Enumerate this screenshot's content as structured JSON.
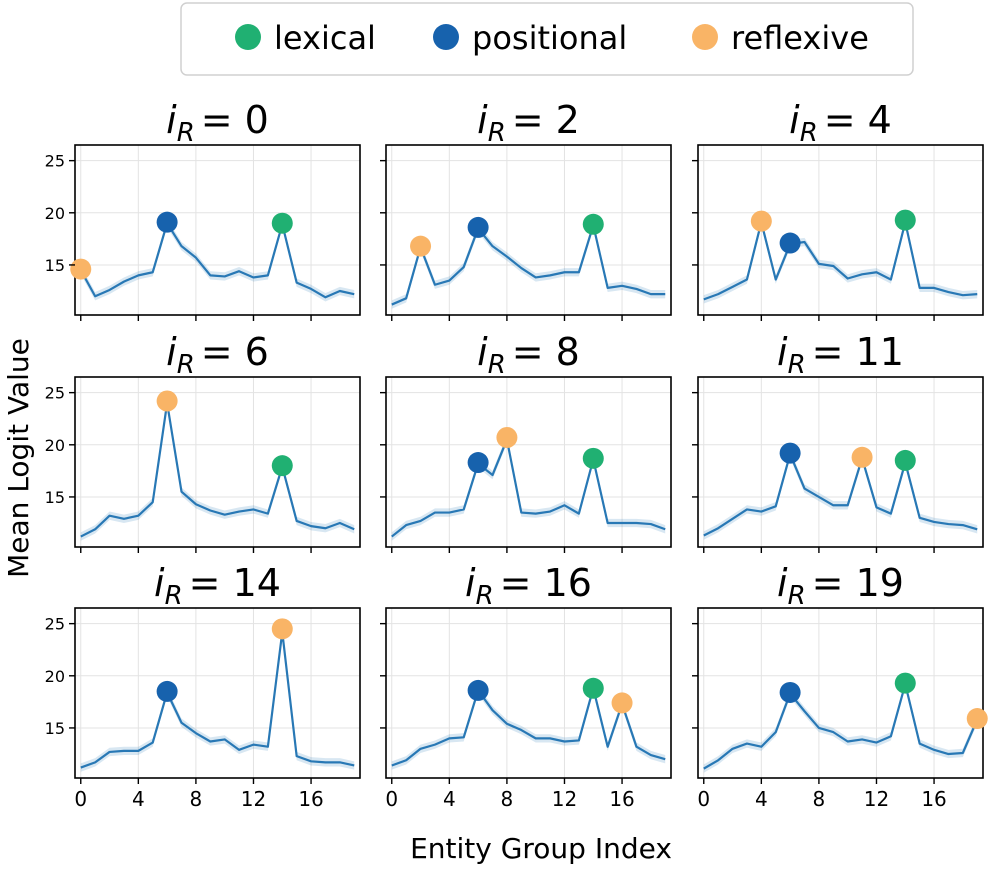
{
  "chart_data": {
    "type": "line",
    "xlabel": "Entity Group Index",
    "ylabel": "Mean Logit Value",
    "xlim": [
      -0.4,
      19.4
    ],
    "ylim": [
      10.2,
      26.5
    ],
    "xticks": [
      0,
      4,
      8,
      12,
      16
    ],
    "yticks": [
      15,
      20,
      25
    ],
    "legend": {
      "placement": "top-center",
      "entries": [
        {
          "label": "lexical",
          "color": "#20b072"
        },
        {
          "label": "positional",
          "color": "#1762ad"
        },
        {
          "label": "reflexive",
          "color": "#f9b466"
        }
      ]
    },
    "colors": {
      "line": "#2878b5",
      "lexical": "#20b072",
      "positional": "#1762ad",
      "reflexive": "#f9b466"
    },
    "panels": [
      {
        "title_var": "i",
        "title_sub": "R",
        "title_value": "= 0",
        "x": [
          0,
          1,
          2,
          3,
          4,
          5,
          6,
          7,
          8,
          9,
          10,
          11,
          12,
          13,
          14,
          15,
          16,
          17,
          18,
          19
        ],
        "y": [
          14.5,
          12.0,
          12.6,
          13.4,
          14.0,
          14.3,
          19.0,
          16.8,
          15.7,
          14.0,
          13.9,
          14.4,
          13.8,
          14.0,
          18.9,
          13.3,
          12.7,
          11.9,
          12.5,
          12.2
        ],
        "markers": [
          {
            "type": "reflexive",
            "x": 0,
            "y": 14.6
          },
          {
            "type": "positional",
            "x": 6,
            "y": 19.1
          },
          {
            "type": "lexical",
            "x": 14,
            "y": 19.0
          }
        ]
      },
      {
        "title_var": "i",
        "title_sub": "R",
        "title_value": "= 2",
        "x": [
          0,
          1,
          2,
          3,
          4,
          5,
          6,
          7,
          8,
          9,
          10,
          11,
          12,
          13,
          14,
          15,
          16,
          17,
          18,
          19
        ],
        "y": [
          11.2,
          11.8,
          16.7,
          13.1,
          13.5,
          14.8,
          18.5,
          16.8,
          15.8,
          14.7,
          13.8,
          14.0,
          14.3,
          14.3,
          18.8,
          12.8,
          13.0,
          12.7,
          12.2,
          12.2
        ],
        "markers": [
          {
            "type": "reflexive",
            "x": 2,
            "y": 16.8
          },
          {
            "type": "positional",
            "x": 6,
            "y": 18.6
          },
          {
            "type": "lexical",
            "x": 14,
            "y": 18.9
          }
        ]
      },
      {
        "title_var": "i",
        "title_sub": "R",
        "title_value": "= 4",
        "x": [
          0,
          1,
          2,
          3,
          4,
          5,
          6,
          7,
          8,
          9,
          10,
          11,
          12,
          13,
          14,
          15,
          16,
          17,
          18,
          19
        ],
        "y": [
          11.7,
          12.2,
          12.9,
          13.6,
          19.1,
          13.6,
          17.0,
          17.2,
          15.1,
          14.9,
          13.7,
          14.1,
          14.3,
          13.6,
          19.1,
          12.8,
          12.8,
          12.4,
          12.1,
          12.2
        ],
        "markers": [
          {
            "type": "reflexive",
            "x": 4,
            "y": 19.2
          },
          {
            "type": "positional",
            "x": 6,
            "y": 17.1
          },
          {
            "type": "lexical",
            "x": 14,
            "y": 19.3
          }
        ]
      },
      {
        "title_var": "i",
        "title_sub": "R",
        "title_value": "= 6",
        "x": [
          0,
          1,
          2,
          3,
          4,
          5,
          6,
          7,
          8,
          9,
          10,
          11,
          12,
          13,
          14,
          15,
          16,
          17,
          18,
          19
        ],
        "y": [
          11.2,
          11.9,
          13.2,
          12.9,
          13.2,
          14.5,
          24.0,
          15.5,
          14.3,
          13.7,
          13.3,
          13.6,
          13.8,
          13.4,
          17.9,
          12.7,
          12.2,
          12.0,
          12.5,
          11.9
        ],
        "markers": [
          {
            "type": "reflexive",
            "x": 6,
            "y": 24.2
          },
          {
            "type": "lexical",
            "x": 14,
            "y": 18.0
          }
        ]
      },
      {
        "title_var": "i",
        "title_sub": "R",
        "title_value": "= 8",
        "x": [
          0,
          1,
          2,
          3,
          4,
          5,
          6,
          7,
          8,
          9,
          10,
          11,
          12,
          13,
          14,
          15,
          16,
          17,
          18,
          19
        ],
        "y": [
          11.2,
          12.3,
          12.7,
          13.5,
          13.5,
          13.8,
          18.2,
          17.1,
          20.5,
          13.5,
          13.4,
          13.6,
          14.2,
          13.4,
          18.6,
          12.5,
          12.5,
          12.5,
          12.4,
          11.9
        ],
        "markers": [
          {
            "type": "positional",
            "x": 6,
            "y": 18.3
          },
          {
            "type": "reflexive",
            "x": 8,
            "y": 20.7
          },
          {
            "type": "lexical",
            "x": 14,
            "y": 18.7
          }
        ]
      },
      {
        "title_var": "i",
        "title_sub": "R",
        "title_value": "= 11",
        "x": [
          0,
          1,
          2,
          3,
          4,
          5,
          6,
          7,
          8,
          9,
          10,
          11,
          12,
          13,
          14,
          15,
          16,
          17,
          18,
          19
        ],
        "y": [
          11.3,
          12.0,
          12.9,
          13.8,
          13.6,
          14.1,
          19.1,
          15.8,
          15.0,
          14.2,
          14.2,
          18.7,
          14.0,
          13.4,
          18.3,
          13.0,
          12.6,
          12.4,
          12.3,
          11.9
        ],
        "markers": [
          {
            "type": "positional",
            "x": 6,
            "y": 19.2
          },
          {
            "type": "reflexive",
            "x": 11,
            "y": 18.8
          },
          {
            "type": "lexical",
            "x": 14,
            "y": 18.5
          }
        ]
      },
      {
        "title_var": "i",
        "title_sub": "R",
        "title_value": "= 14",
        "x": [
          0,
          1,
          2,
          3,
          4,
          5,
          6,
          7,
          8,
          9,
          10,
          11,
          12,
          13,
          14,
          15,
          16,
          17,
          18,
          19
        ],
        "y": [
          11.2,
          11.7,
          12.7,
          12.8,
          12.8,
          13.6,
          18.4,
          15.5,
          14.5,
          13.7,
          13.9,
          12.9,
          13.4,
          13.2,
          24.2,
          12.3,
          11.8,
          11.7,
          11.7,
          11.4
        ],
        "markers": [
          {
            "type": "positional",
            "x": 6,
            "y": 18.5
          },
          {
            "type": "reflexive",
            "x": 14,
            "y": 24.5
          }
        ]
      },
      {
        "title_var": "i",
        "title_sub": "R",
        "title_value": "= 16",
        "x": [
          0,
          1,
          2,
          3,
          4,
          5,
          6,
          7,
          8,
          9,
          10,
          11,
          12,
          13,
          14,
          15,
          16,
          17,
          18,
          19
        ],
        "y": [
          11.4,
          11.9,
          13.0,
          13.4,
          14.0,
          14.1,
          18.6,
          16.7,
          15.4,
          14.8,
          14.0,
          14.0,
          13.7,
          13.8,
          18.8,
          13.2,
          17.3,
          13.2,
          12.4,
          12.0
        ],
        "markers": [
          {
            "type": "positional",
            "x": 6,
            "y": 18.6
          },
          {
            "type": "lexical",
            "x": 14,
            "y": 18.8
          },
          {
            "type": "reflexive",
            "x": 16,
            "y": 17.4
          }
        ]
      },
      {
        "title_var": "i",
        "title_sub": "R",
        "title_value": "= 19",
        "x": [
          0,
          1,
          2,
          3,
          4,
          5,
          6,
          7,
          8,
          9,
          10,
          11,
          12,
          13,
          14,
          15,
          16,
          17,
          18,
          19
        ],
        "y": [
          11.1,
          11.9,
          13.0,
          13.5,
          13.2,
          14.6,
          18.3,
          16.6,
          15.0,
          14.6,
          13.7,
          13.9,
          13.6,
          14.2,
          19.2,
          13.5,
          12.9,
          12.5,
          12.6,
          15.8
        ],
        "markers": [
          {
            "type": "positional",
            "x": 6,
            "y": 18.4
          },
          {
            "type": "lexical",
            "x": 14,
            "y": 19.3
          },
          {
            "type": "reflexive",
            "x": 19,
            "y": 15.9
          }
        ]
      }
    ]
  }
}
